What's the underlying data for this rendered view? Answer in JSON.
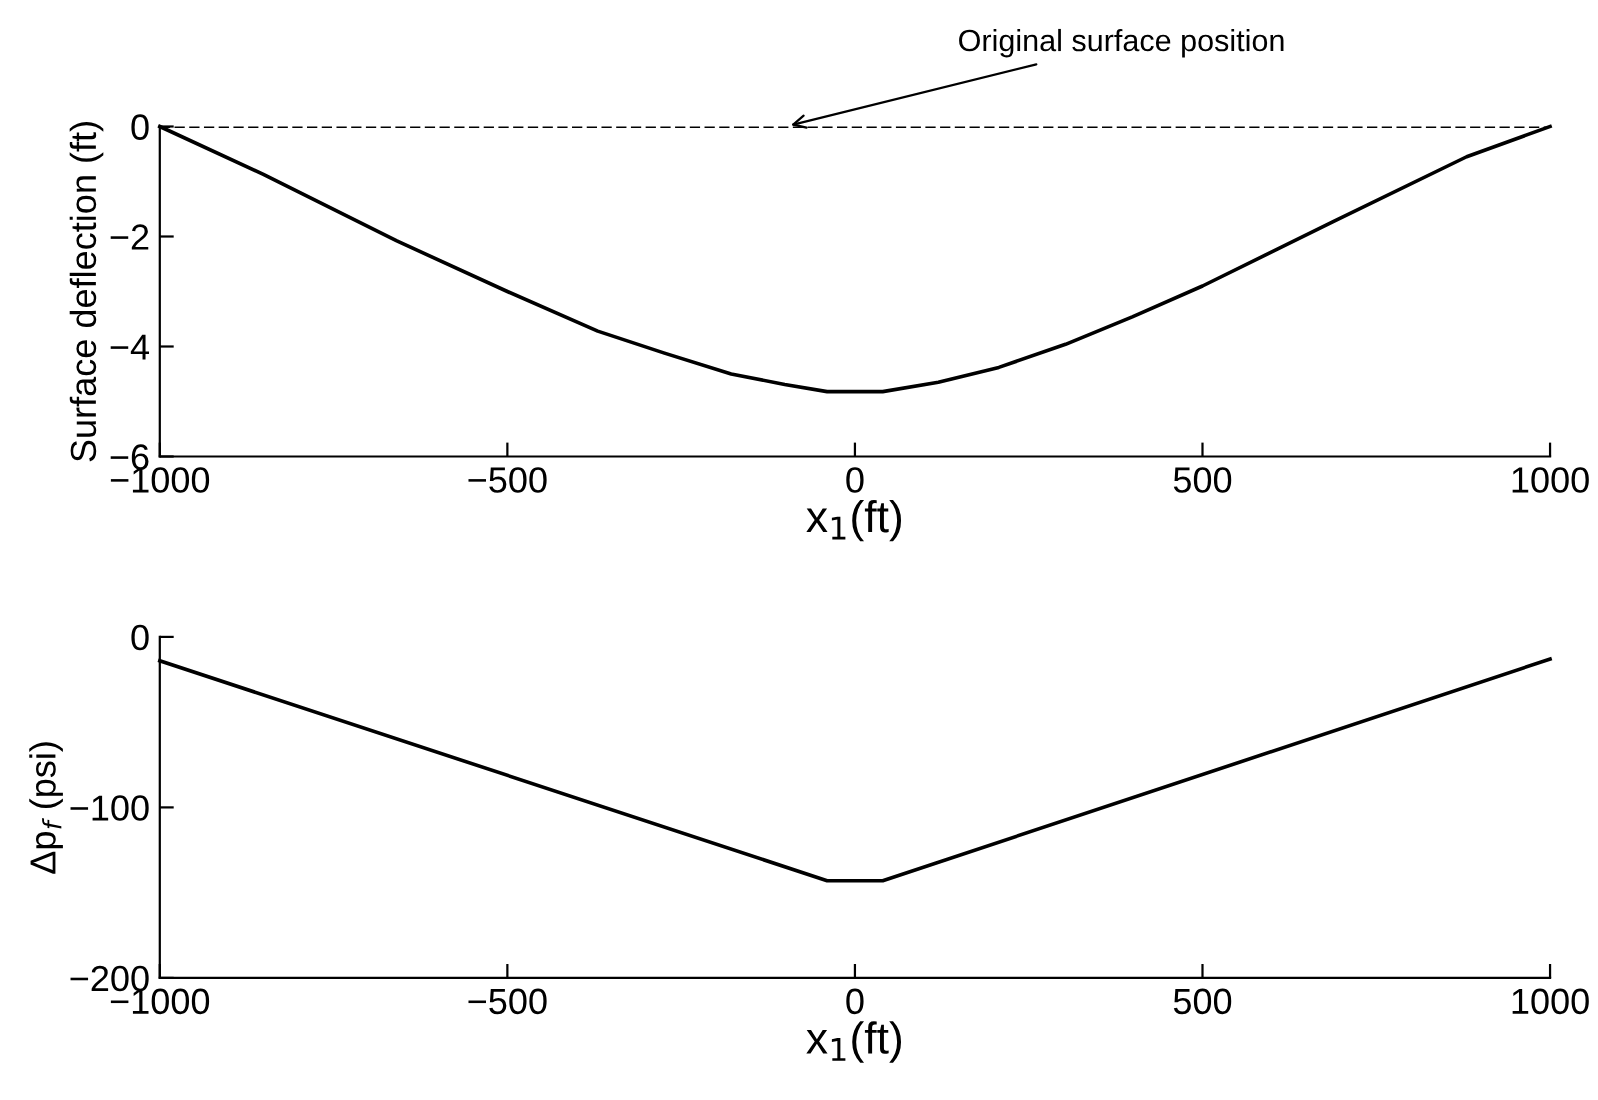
{
  "chart_data": [
    {
      "type": "line",
      "ylabel": "Surface deflection (ft)",
      "xlabel": "x$_{1}$(ft)",
      "x": [
        -1000,
        -851,
        -659,
        -500,
        -370,
        -274,
        -178,
        -101,
        -40,
        40,
        120,
        207,
        303,
        399,
        500,
        688,
        880,
        1000
      ],
      "series": [
        {
          "color": "#000000",
          "values": [
            0,
            -0.87,
            -2.08,
            -3.0,
            -3.72,
            -4.12,
            -4.5,
            -4.69,
            -4.82,
            -4.82,
            -4.65,
            -4.38,
            -3.96,
            -3.46,
            -2.9,
            -1.73,
            -0.55,
            0
          ]
        }
      ],
      "xlim": [
        -1000,
        1000
      ],
      "xticks": [
        -1000,
        -500,
        0,
        500,
        1000
      ],
      "ylim": [
        -6,
        0
      ],
      "yticks": [
        -6,
        -4,
        -2,
        0
      ],
      "ref_lines": [
        {
          "axis": "y",
          "value": 0,
          "color": "#000000",
          "line_style": "dashed"
        }
      ],
      "annotations": [
        {
          "text": "Original surface position",
          "x": -100,
          "y": 0
        }
      ],
      "grid": false,
      "legend": false,
      "marker": "none",
      "line_style": "solid"
    },
    {
      "type": "line",
      "ylabel": "Δp$_{f}$ (psi)",
      "xlabel": "x$_{1}$(ft)",
      "x": [
        -1000,
        -40,
        40,
        1000
      ],
      "series": [
        {
          "color": "#000000",
          "values": [
            -14,
            -143,
            -143,
            -13
          ]
        }
      ],
      "xlim": [
        -1000,
        1000
      ],
      "xticks": [
        -1000,
        -500,
        0,
        500,
        1000
      ],
      "ylim": [
        -200,
        0
      ],
      "yticks": [
        -200,
        -100,
        0
      ],
      "grid": false,
      "legend": false,
      "marker": "none",
      "line_style": "solid"
    }
  ]
}
